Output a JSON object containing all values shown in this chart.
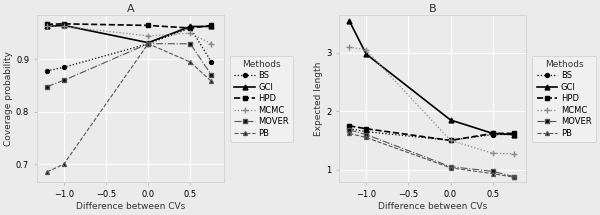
{
  "x_values": [
    -1.2,
    -1.0,
    0.0,
    0.5,
    0.75
  ],
  "panel_A": {
    "title": "A",
    "xlabel": "Difference between CVs",
    "ylabel": "Coverage probability",
    "ylim": [
      0.665,
      0.985
    ],
    "yticks": [
      0.7,
      0.8,
      0.9
    ],
    "xticks": [
      -1.0,
      -0.5,
      0.0,
      0.5
    ],
    "series": {
      "BS": [
        0.878,
        0.885,
        0.93,
        0.96,
        0.895
      ],
      "GCI": [
        0.963,
        0.965,
        0.932,
        0.963,
        0.963
      ],
      "HPD": [
        0.967,
        0.968,
        0.965,
        0.96,
        0.965
      ],
      "MCMC": [
        0.963,
        0.963,
        0.945,
        0.95,
        0.93
      ],
      "MOVER": [
        0.848,
        0.86,
        0.93,
        0.93,
        0.87
      ],
      "PB": [
        0.685,
        0.7,
        0.93,
        0.895,
        0.858
      ]
    }
  },
  "panel_B": {
    "title": "B",
    "xlabel": "Difference between CVs",
    "ylabel": "Expected length",
    "ylim": [
      0.78,
      3.65
    ],
    "yticks": [
      1,
      2,
      3
    ],
    "xticks": [
      -1.0,
      -0.5,
      0.0,
      0.5
    ],
    "series": {
      "BS": [
        1.7,
        1.65,
        1.5,
        1.6,
        1.6
      ],
      "GCI": [
        3.55,
        2.98,
        1.85,
        1.62,
        1.6
      ],
      "HPD": [
        1.75,
        1.7,
        1.5,
        1.62,
        1.62
      ],
      "MCMC": [
        3.1,
        3.05,
        1.5,
        1.28,
        1.27
      ],
      "MOVER": [
        1.68,
        1.6,
        1.05,
        0.97,
        0.88
      ],
      "PB": [
        1.62,
        1.55,
        1.03,
        0.93,
        0.87
      ]
    }
  },
  "methods": [
    "BS",
    "GCI",
    "HPD",
    "MCMC",
    "MOVER",
    "PB"
  ],
  "line_styles": {
    "BS": {
      "ls": "dotted",
      "marker": "o",
      "ms": 2.8,
      "lw": 0.9,
      "mfc": "black",
      "color": "black"
    },
    "GCI": {
      "ls": "solid",
      "marker": "^",
      "ms": 3.5,
      "lw": 1.2,
      "mfc": "black",
      "color": "black"
    },
    "HPD": {
      "ls": "dashed",
      "marker": "s",
      "ms": 3.2,
      "lw": 1.2,
      "mfc": "black",
      "color": "black"
    },
    "MCMC": {
      "ls": "dotted",
      "marker": "+",
      "ms": 4.0,
      "lw": 0.9,
      "mfc": "black",
      "color": "#888888"
    },
    "MOVER": {
      "ls": "dashdot",
      "marker": "s",
      "ms": 2.8,
      "lw": 0.8,
      "mfc": "black",
      "color": "#555555"
    },
    "PB": {
      "ls": "dashed",
      "marker": "^",
      "ms": 2.8,
      "lw": 0.8,
      "mfc": "black",
      "color": "#555555"
    }
  },
  "bg_color": "#ebebeb",
  "grid_color": "#ffffff",
  "text_color": "#333333"
}
